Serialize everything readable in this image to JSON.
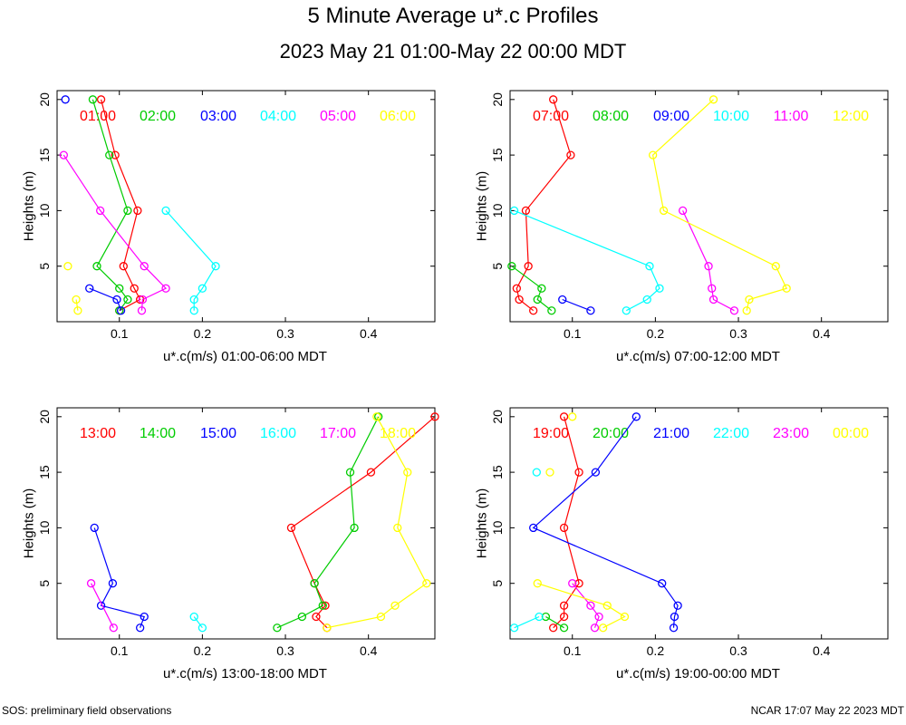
{
  "title": "5 Minute Average u*.c Profiles",
  "subtitle": "2023 May 21 01:00-May 22 00:00 MDT",
  "footer_left": "SOS: preliminary field observations",
  "footer_right": "NCAR 17:07 May 22 2023 MDT",
  "series_colors": [
    "#ff0000",
    "#00cc00",
    "#0000ff",
    "#00ffff",
    "#ff00ff",
    "#ffff00"
  ],
  "chart_data": [
    {
      "type": "line",
      "xlabel": "u*.c(m/s) 01:00-06:00 MDT",
      "ylabel": "Heights (m)",
      "xlim": [
        0.025,
        0.48
      ],
      "ylim": [
        0,
        20.8
      ],
      "xticks": [
        0.1,
        0.2,
        0.3,
        0.4
      ],
      "xtick_labels": [
        "0.1",
        "0.2",
        "0.3",
        "0.4"
      ],
      "yticks": [
        5,
        10,
        15,
        20
      ],
      "ytick_labels": [
        "5",
        "10",
        "15",
        "20"
      ],
      "series": [
        {
          "name": "01:00",
          "x": [
            0.1,
            0.125,
            0.118,
            0.105,
            0.122,
            0.095,
            0.078
          ],
          "y": [
            1,
            2,
            3,
            5,
            10,
            15,
            20
          ]
        },
        {
          "name": "02:00",
          "x": [
            0.1,
            0.11,
            0.1,
            0.073,
            0.11,
            0.088,
            0.068
          ],
          "y": [
            1,
            2,
            3,
            5,
            10,
            15,
            20
          ]
        },
        {
          "name": "03:00",
          "x": [
            0.102,
            0.097,
            0.064
          ],
          "y": [
            1,
            2,
            3
          ],
          "extra": {
            "x": 0.035,
            "y": 20
          }
        },
        {
          "name": "04:00",
          "x": [
            0.19,
            0.19,
            0.2,
            0.216,
            0.156
          ],
          "y": [
            1,
            2,
            3,
            5,
            10
          ]
        },
        {
          "name": "05:00",
          "x": [
            0.127,
            0.128,
            0.156,
            0.13,
            0.077,
            0.033
          ],
          "y": [
            1,
            2,
            3,
            5,
            10,
            15
          ]
        },
        {
          "name": "06:00",
          "x": [
            0.05,
            0.048
          ],
          "y": [
            1,
            2
          ],
          "extra": {
            "x": 0.038,
            "y": 5
          }
        }
      ]
    },
    {
      "type": "line",
      "xlabel": "u*.c(m/s) 07:00-12:00 MDT",
      "ylabel": "Heights (m)",
      "xlim": [
        0.025,
        0.48
      ],
      "ylim": [
        0,
        20.8
      ],
      "xticks": [
        0.1,
        0.2,
        0.3,
        0.4
      ],
      "xtick_labels": [
        "0.1",
        "0.2",
        "0.3",
        "0.4"
      ],
      "yticks": [
        5,
        10,
        15,
        20
      ],
      "ytick_labels": [
        "5",
        "10",
        "15",
        "20"
      ],
      "series": [
        {
          "name": "07:00",
          "x": [
            0.053,
            0.036,
            0.033,
            0.047,
            0.044,
            0.098,
            0.077
          ],
          "y": [
            1,
            2,
            3,
            5,
            10,
            15,
            20
          ]
        },
        {
          "name": "08:00",
          "x": [
            0.075,
            0.058,
            0.063,
            0.027
          ],
          "y": [
            1,
            2,
            3,
            5
          ]
        },
        {
          "name": "09:00",
          "x": [
            0.122,
            0.088
          ],
          "y": [
            1,
            2
          ]
        },
        {
          "name": "10:00",
          "x": [
            0.165,
            0.19,
            0.205,
            0.193,
            0.03
          ],
          "y": [
            1,
            2,
            3,
            5,
            10
          ]
        },
        {
          "name": "11:00",
          "x": [
            0.295,
            0.27,
            0.268,
            0.264,
            0.233
          ],
          "y": [
            1,
            2,
            3,
            5,
            10
          ]
        },
        {
          "name": "12:00",
          "x": [
            0.31,
            0.313,
            0.358,
            0.345,
            0.21,
            0.197,
            0.27
          ],
          "y": [
            1,
            2,
            3,
            5,
            10,
            15,
            20
          ]
        }
      ]
    },
    {
      "type": "line",
      "xlabel": "u*.c(m/s) 13:00-18:00 MDT",
      "ylabel": "Heights (m)",
      "xlim": [
        0.025,
        0.48
      ],
      "ylim": [
        0,
        20.8
      ],
      "xticks": [
        0.1,
        0.2,
        0.3,
        0.4
      ],
      "xtick_labels": [
        "0.1",
        "0.2",
        "0.3",
        "0.4"
      ],
      "yticks": [
        5,
        10,
        15,
        20
      ],
      "ytick_labels": [
        "5",
        "10",
        "15",
        "20"
      ],
      "series": [
        {
          "name": "13:00",
          "x": [
            0.35,
            0.337,
            0.348,
            0.335,
            0.307,
            0.403,
            0.48
          ],
          "y": [
            1,
            2,
            3,
            5,
            10,
            15,
            20
          ]
        },
        {
          "name": "14:00",
          "x": [
            0.29,
            0.32,
            0.345,
            0.335,
            0.383,
            0.378,
            0.412
          ],
          "y": [
            1,
            2,
            3,
            5,
            10,
            15,
            20
          ]
        },
        {
          "name": "15:00",
          "x": [
            0.125,
            0.13,
            0.078,
            0.092,
            0.07
          ],
          "y": [
            1,
            2,
            3,
            5,
            10
          ]
        },
        {
          "name": "16:00",
          "x": [
            0.2,
            0.19
          ],
          "y": [
            1,
            2
          ]
        },
        {
          "name": "17:00",
          "x": [
            0.093,
            0.066
          ],
          "y": [
            1,
            5
          ]
        },
        {
          "name": "18:00",
          "x": [
            0.35,
            0.415,
            0.432,
            0.47,
            0.435,
            0.447,
            0.41
          ],
          "y": [
            1,
            2,
            3,
            5,
            10,
            15,
            20
          ]
        }
      ]
    },
    {
      "type": "line",
      "xlabel": "u*.c(m/s) 19:00-00:00 MDT",
      "ylabel": "Heights (m)",
      "xlim": [
        0.025,
        0.48
      ],
      "ylim": [
        0,
        20.8
      ],
      "xticks": [
        0.1,
        0.2,
        0.3,
        0.4
      ],
      "xtick_labels": [
        "0.1",
        "0.2",
        "0.3",
        "0.4"
      ],
      "yticks": [
        5,
        10,
        15,
        20
      ],
      "ytick_labels": [
        "5",
        "10",
        "15",
        "20"
      ],
      "series": [
        {
          "name": "19:00",
          "x": [
            0.077,
            0.09,
            0.09,
            0.108,
            0.09,
            0.108,
            0.09
          ],
          "y": [
            1,
            2,
            3,
            5,
            10,
            15,
            20
          ]
        },
        {
          "name": "20:00",
          "x": [
            0.09,
            0.068
          ],
          "y": [
            1,
            2
          ]
        },
        {
          "name": "21:00",
          "x": [
            0.222,
            0.223,
            0.227,
            0.208,
            0.053,
            0.128,
            0.177
          ],
          "y": [
            1,
            2,
            3,
            5,
            10,
            15,
            20
          ]
        },
        {
          "name": "22:00",
          "x": [
            0.03,
            0.06
          ],
          "y": [
            1,
            2
          ],
          "extra": {
            "x": 0.057,
            "y": 15
          }
        },
        {
          "name": "23:00",
          "x": [
            0.127,
            0.132,
            0.122,
            0.1
          ],
          "y": [
            1,
            2,
            3,
            5
          ]
        },
        {
          "name": "00:00",
          "x": [
            0.137,
            0.163,
            0.142,
            0.058
          ],
          "y": [
            1,
            2,
            3,
            5
          ],
          "extra": [
            {
              "x": 0.073,
              "y": 15
            },
            {
              "x": 0.1,
              "y": 20
            }
          ]
        }
      ]
    }
  ]
}
